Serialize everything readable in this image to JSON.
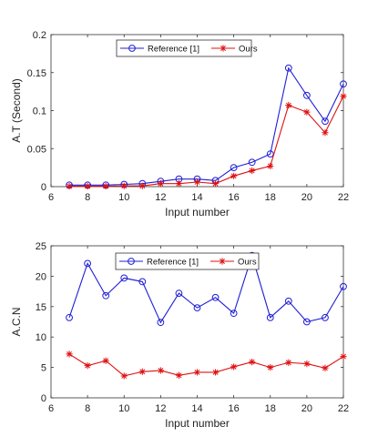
{
  "chart_data": [
    {
      "type": "line",
      "title": "",
      "xlabel": "Input number",
      "ylabel": "A.T (Second)",
      "xlim": [
        6,
        22
      ],
      "ylim": [
        0,
        0.2
      ],
      "xticks": [
        6,
        8,
        10,
        12,
        14,
        16,
        18,
        20,
        22
      ],
      "yticks": [
        0,
        0.05,
        0.1,
        0.15,
        0.2
      ],
      "ytick_labels": [
        "0",
        "0.05",
        "0.1",
        "0.15",
        "0.2"
      ],
      "grid": false,
      "legend_position": "top-center",
      "x": [
        7,
        8,
        9,
        10,
        11,
        12,
        13,
        14,
        15,
        16,
        17,
        18,
        19,
        20,
        21,
        22
      ],
      "series": [
        {
          "name": "Reference [1]",
          "color": "#1f1fd6",
          "marker": "circle",
          "values": [
            0.002,
            0.002,
            0.002,
            0.003,
            0.004,
            0.007,
            0.01,
            0.01,
            0.008,
            0.025,
            0.032,
            0.043,
            0.156,
            0.12,
            0.086,
            0.135
          ]
        },
        {
          "name": "Ours",
          "color": "#e01010",
          "marker": "asterisk",
          "values": [
            0.0005,
            0.0005,
            0.0005,
            0.001,
            0.001,
            0.004,
            0.004,
            0.006,
            0.004,
            0.014,
            0.021,
            0.027,
            0.107,
            0.098,
            0.071,
            0.119
          ]
        }
      ]
    },
    {
      "type": "line",
      "title": "",
      "xlabel": "Input number",
      "ylabel": "A.C.N",
      "xlim": [
        6,
        22
      ],
      "ylim": [
        0,
        25
      ],
      "xticks": [
        6,
        8,
        10,
        12,
        14,
        16,
        18,
        20,
        22
      ],
      "yticks": [
        0,
        5,
        10,
        15,
        20,
        25
      ],
      "ytick_labels": [
        "0",
        "5",
        "10",
        "15",
        "20",
        "25"
      ],
      "grid": false,
      "legend_position": "top-center",
      "x": [
        7,
        8,
        9,
        10,
        11,
        12,
        13,
        14,
        15,
        16,
        17,
        18,
        19,
        20,
        21,
        22
      ],
      "series": [
        {
          "name": "Reference [1]",
          "color": "#1f1fd6",
          "marker": "circle",
          "values": [
            13.2,
            22.1,
            16.8,
            19.7,
            19.1,
            12.4,
            17.2,
            14.8,
            16.5,
            13.9,
            23.4,
            13.2,
            15.9,
            12.5,
            13.2,
            18.3
          ]
        },
        {
          "name": "Ours",
          "color": "#e01010",
          "marker": "asterisk",
          "values": [
            7.2,
            5.3,
            6.1,
            3.6,
            4.3,
            4.5,
            3.7,
            4.2,
            4.2,
            5.1,
            5.9,
            5.0,
            5.8,
            5.6,
            4.9,
            6.8
          ]
        }
      ]
    }
  ]
}
